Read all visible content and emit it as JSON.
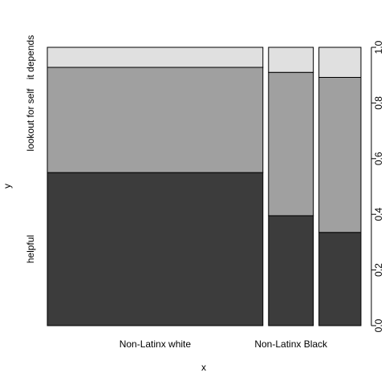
{
  "chart_data": {
    "type": "spineplot",
    "xlabel": "x",
    "ylabel": "y",
    "ylim": [
      0,
      1
    ],
    "categories": [
      "Non-Latinx white",
      "Non-Latinx Black",
      ""
    ],
    "category_widths": [
      0.77,
      0.16,
      0.15
    ],
    "levels": [
      "helpful",
      "lookout for self",
      "it depends"
    ],
    "stack": [
      {
        "level": "helpful",
        "values": [
          0.55,
          0.395,
          0.335
        ],
        "color": "#3c3c3c"
      },
      {
        "level": "lookout for self",
        "values": [
          0.378,
          0.515,
          0.557
        ],
        "color": "#a0a0a0"
      },
      {
        "level": "it depends",
        "values": [
          0.072,
          0.09,
          0.108
        ],
        "color": "#e0e0e0"
      }
    ],
    "right_axis_ticks": [
      "0.0",
      "0.2",
      "0.4",
      "0.6",
      "0.8",
      "1.0"
    ]
  }
}
